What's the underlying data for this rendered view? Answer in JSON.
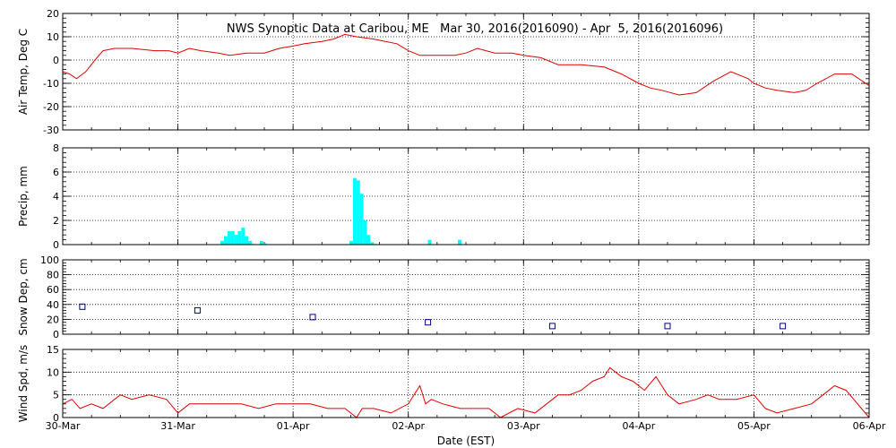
{
  "chart_data": {
    "type": "multi-panel",
    "title": "NWS Synoptic Data at Caribou, ME   Mar 30, 2016(2016090) - Apr  5, 2016(2016096)",
    "xlabel": "Date (EST)",
    "x_ticks": [
      "30-Mar",
      "31-Mar",
      "01-Apr",
      "02-Apr",
      "03-Apr",
      "04-Apr",
      "05-Apr",
      "06-Apr"
    ],
    "x_range_days": [
      0,
      7
    ],
    "panels": [
      {
        "id": "air-temp",
        "type": "line",
        "ylabel": "Air Temp, Deg C",
        "ylim": [
          -30,
          20
        ],
        "yticks": [
          20,
          10,
          0,
          -10,
          -20,
          -30
        ],
        "color": "#e00000",
        "x": [
          0,
          0.06,
          0.12,
          0.2,
          0.28,
          0.35,
          0.45,
          0.6,
          0.8,
          0.92,
          1.0,
          1.1,
          1.2,
          1.35,
          1.45,
          1.6,
          1.75,
          1.88,
          2.0,
          2.1,
          2.25,
          2.35,
          2.45,
          2.55,
          2.7,
          2.8,
          2.9,
          3.0,
          3.1,
          3.25,
          3.4,
          3.5,
          3.6,
          3.75,
          3.9,
          4.0,
          4.15,
          4.3,
          4.5,
          4.7,
          4.85,
          5.0,
          5.1,
          5.2,
          5.35,
          5.5,
          5.65,
          5.8,
          5.95,
          6.0,
          6.1,
          6.2,
          6.35,
          6.45,
          6.55,
          6.7,
          6.85,
          7.0
        ],
        "values": [
          -5,
          -6,
          -8,
          -5,
          0,
          4,
          5,
          5,
          4,
          4,
          3,
          5,
          4,
          3,
          2,
          3,
          3,
          5,
          6,
          7,
          8,
          9,
          11,
          10,
          9,
          8,
          7,
          4,
          2,
          2,
          2,
          3,
          5,
          3,
          3,
          2,
          1,
          -2,
          -2,
          -3,
          -6,
          -10,
          -12,
          -13,
          -15,
          -14,
          -9,
          -5,
          -8,
          -10,
          -12,
          -13,
          -14,
          -13,
          -10,
          -6,
          -6,
          -11
        ]
      },
      {
        "id": "precip",
        "type": "bar",
        "ylabel": "Precip, mm",
        "ylim": [
          0,
          8
        ],
        "yticks": [
          8,
          6,
          4,
          2,
          0
        ],
        "color": "#00ffff",
        "x": [
          1.37,
          1.4,
          1.43,
          1.46,
          1.49,
          1.52,
          1.55,
          1.58,
          1.61,
          1.64,
          1.67,
          1.71,
          1.74,
          2.49,
          2.52,
          2.55,
          2.58,
          2.61,
          2.64,
          2.67,
          2.7,
          3.17,
          3.43
        ],
        "values": [
          0.3,
          0.7,
          1.1,
          1.1,
          0.8,
          1.1,
          1.4,
          0.7,
          0.3,
          0.05,
          0,
          0.3,
          0.1,
          0.3,
          5.5,
          5.3,
          4.2,
          2.0,
          0.8,
          0.2,
          0.05,
          0.4,
          0.4
        ],
        "bar_width_days": 0.03
      },
      {
        "id": "snow-depth",
        "type": "scatter",
        "ylabel": "Snow Dep, cm",
        "ylim": [
          0,
          100
        ],
        "yticks": [
          100,
          80,
          60,
          40,
          20,
          0
        ],
        "color": "#00008b",
        "x": [
          0.17,
          1.17,
          2.17,
          3.17,
          4.25,
          5.25,
          6.25
        ],
        "values": [
          37,
          32,
          23,
          16,
          11,
          11,
          11
        ]
      },
      {
        "id": "wind-speed",
        "type": "line",
        "ylabel": "Wind Spd, m/s",
        "ylim": [
          0,
          15
        ],
        "yticks": [
          15,
          10,
          5,
          0
        ],
        "color": "#e00000",
        "x": [
          0,
          0.08,
          0.15,
          0.25,
          0.35,
          0.45,
          0.5,
          0.6,
          0.75,
          0.9,
          1.0,
          1.1,
          1.25,
          1.4,
          1.55,
          1.7,
          1.85,
          2.0,
          2.15,
          2.3,
          2.45,
          2.55,
          2.6,
          2.7,
          2.85,
          3.0,
          3.1,
          3.15,
          3.2,
          3.3,
          3.45,
          3.55,
          3.7,
          3.8,
          3.95,
          4.1,
          4.2,
          4.3,
          4.4,
          4.5,
          4.6,
          4.7,
          4.75,
          4.85,
          4.95,
          5.05,
          5.15,
          5.25,
          5.35,
          5.5,
          5.6,
          5.7,
          5.85,
          6.0,
          6.1,
          6.2,
          6.35,
          6.5,
          6.6,
          6.7,
          6.8,
          6.9,
          7.0
        ],
        "values": [
          3,
          4,
          2,
          3,
          2,
          4,
          5,
          4,
          5,
          4,
          1,
          3,
          3,
          3,
          3,
          2,
          3,
          3,
          3,
          2,
          2,
          0,
          2,
          2,
          1,
          3,
          7,
          3,
          4,
          3,
          2,
          2,
          2,
          0,
          2,
          1,
          3,
          5,
          5,
          6,
          8,
          9,
          11,
          9,
          8,
          6,
          9,
          5,
          3,
          4,
          5,
          4,
          4,
          5,
          2,
          1,
          2,
          3,
          5,
          7,
          6,
          3,
          0
        ]
      }
    ]
  }
}
